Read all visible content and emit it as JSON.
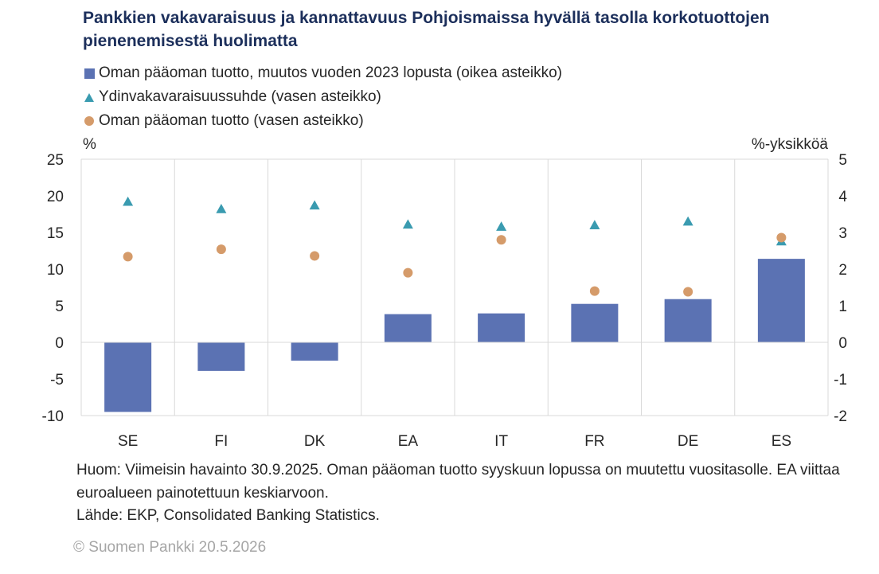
{
  "title": "Pankkien vakavaraisuus ja kannattavuus Pohjoismaissa hyvällä tasolla korkotuottojen pienenemisestä huolimatta",
  "legend": [
    {
      "label": "Oman pääoman tuotto, muutos vuoden 2023 lopusta (oikea asteikko)",
      "marker": "bar",
      "color": "#5b72b3"
    },
    {
      "label": "Ydinvakavaraisuussuhde (vasen asteikko)",
      "marker": "triangle",
      "color": "#3a9bb0"
    },
    {
      "label": "Oman pääoman tuotto (vasen asteikko)",
      "marker": "circle",
      "color": "#d59b6a"
    }
  ],
  "axis": {
    "left_unit": "%",
    "right_unit": "%-yksikköä"
  },
  "chart_data": {
    "type": "bar",
    "categories": [
      "SE",
      "FI",
      "DK",
      "EA",
      "IT",
      "FR",
      "DE",
      "ES"
    ],
    "series": [
      {
        "name": "Oman pääoman tuotto, muutos vuoden 2023 lopusta (oikea asteikko)",
        "axis": "right",
        "type": "bar",
        "values": [
          -1.9,
          -0.78,
          -0.5,
          0.77,
          0.79,
          1.05,
          1.18,
          2.28
        ]
      },
      {
        "name": "Ydinvakavaraisuussuhde (vasen asteikko)",
        "axis": "left",
        "type": "scatter",
        "marker": "triangle",
        "values": [
          19.2,
          18.2,
          18.7,
          16.1,
          15.8,
          16.0,
          16.5,
          13.8
        ]
      },
      {
        "name": "Oman pääoman tuotto (vasen asteikko)",
        "axis": "left",
        "type": "scatter",
        "marker": "circle",
        "values": [
          11.7,
          12.7,
          11.8,
          9.5,
          14.0,
          7.0,
          6.9,
          14.3
        ]
      }
    ],
    "y_left": {
      "min": -10,
      "max": 25,
      "ticks": [
        "25",
        "20",
        "15",
        "10",
        "5",
        "0",
        "-5",
        "-10"
      ]
    },
    "y_right": {
      "min": -2,
      "max": 5,
      "ticks": [
        "5",
        "4",
        "3",
        "2",
        "1",
        "0",
        "-1",
        "-2"
      ]
    },
    "grid": "vertical",
    "legend_position": "top-left",
    "colors": {
      "bar": "#5b72b3",
      "triangle": "#3a9bb0",
      "circle": "#d59b6a",
      "grid": "#d9d9d9"
    }
  },
  "notes": {
    "line1": "Huom: Viimeisin havainto 30.9.2025. Oman pääoman tuotto syyskuun lopussa on muutettu vuositasolle. EA viittaa euroalueen painotettuun keskiarvoon.",
    "line2": "Lähde: EKP, Consolidated Banking Statistics."
  },
  "copyright": "© Suomen Pankki 20.5.2026"
}
